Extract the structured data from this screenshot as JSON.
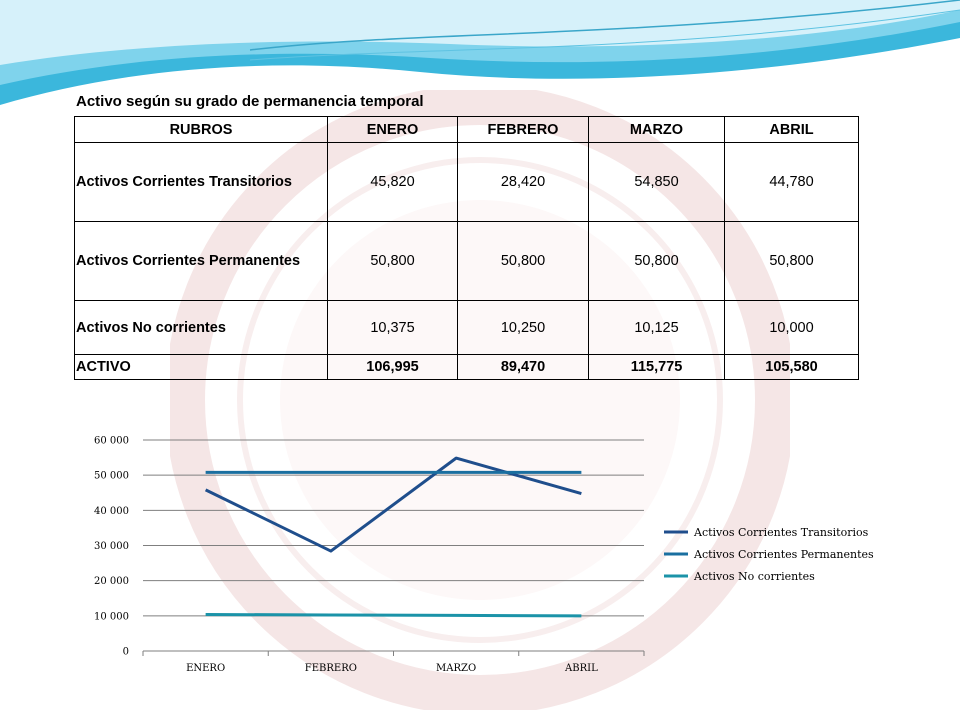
{
  "table": {
    "title": "Activo según su grado de permanencia temporal",
    "headers": [
      "RUBROS",
      "ENERO",
      "FEBRERO",
      "MARZO",
      "ABRIL"
    ],
    "rows": [
      [
        "Activos Corrientes Transitorios",
        "45,820",
        "28,420",
        "54,850",
        "44,780"
      ],
      [
        "Activos Corrientes Permanentes",
        "50,800",
        "50,800",
        "50,800",
        "50,800"
      ],
      [
        "Activos No corrientes",
        "10,375",
        "10,250",
        "10,125",
        "10,000"
      ],
      [
        "ACTIVO",
        "106,995",
        "89,470",
        "115,775",
        "105,580"
      ]
    ]
  },
  "colors": {
    "transitorios": "#1f4e8c",
    "permanentes": "#1a6fa0",
    "no_corrientes": "#1b93a8",
    "grid": "#7f7f7f",
    "wave": "#36b4d9"
  },
  "chart_data": {
    "type": "line",
    "categories": [
      "ENERO",
      "FEBRERO",
      "MARZO",
      "ABRIL"
    ],
    "series": [
      {
        "name": "Activos Corrientes Transitorios",
        "values": [
          45820,
          28420,
          54850,
          44780
        ]
      },
      {
        "name": "Activos Corrientes Permanentes",
        "values": [
          50800,
          50800,
          50800,
          50800
        ]
      },
      {
        "name": "Activos No corrientes",
        "values": [
          10375,
          10250,
          10125,
          10000
        ]
      }
    ],
    "y_ticks": [
      "0",
      "10 000",
      "20 000",
      "30 000",
      "40 000",
      "50 000",
      "60 000"
    ],
    "ylim": [
      0,
      60000
    ],
    "grid": true,
    "legend": "right"
  }
}
